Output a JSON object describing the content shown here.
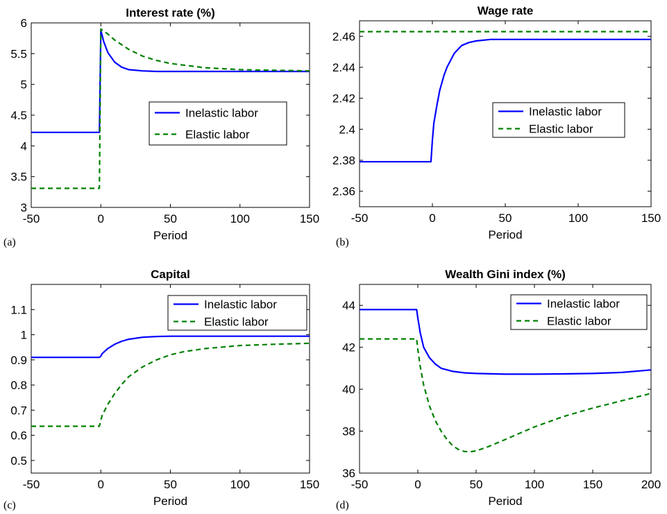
{
  "chart_data": [
    {
      "type": "line",
      "panel_label": "(a)",
      "title": "Interest rate (%)",
      "xlabel": "Period",
      "ylabel": "",
      "xlim": [
        -50,
        150
      ],
      "ylim": [
        3,
        6
      ],
      "xticks": [
        "-50",
        "0",
        "50",
        "100",
        "150"
      ],
      "yticks": [
        "3",
        "3.5",
        "4",
        "4.5",
        "5",
        "5.5",
        "6"
      ],
      "legend_position": "center-right",
      "series": [
        {
          "name": "Inelastic labor",
          "color": "#0000ff",
          "style": "solid",
          "x": [
            -50,
            -1,
            0,
            2,
            5,
            10,
            15,
            20,
            30,
            40,
            50,
            75,
            100,
            150
          ],
          "y": [
            4.22,
            4.22,
            5.88,
            5.7,
            5.52,
            5.36,
            5.28,
            5.24,
            5.22,
            5.21,
            5.21,
            5.21,
            5.21,
            5.21
          ]
        },
        {
          "name": "Elastic labor",
          "color": "#008000",
          "style": "dashed",
          "x": [
            -50,
            -1,
            0,
            5,
            10,
            20,
            30,
            40,
            50,
            75,
            100,
            125,
            150
          ],
          "y": [
            3.31,
            3.31,
            5.9,
            5.82,
            5.72,
            5.57,
            5.46,
            5.39,
            5.34,
            5.27,
            5.24,
            5.23,
            5.22
          ]
        }
      ]
    },
    {
      "type": "line",
      "panel_label": "(b)",
      "title": "Wage rate",
      "xlabel": "Period",
      "ylabel": "",
      "xlim": [
        -50,
        150
      ],
      "ylim": [
        2.35,
        2.47
      ],
      "xticks": [
        "-50",
        "0",
        "50",
        "100",
        "150"
      ],
      "yticks": [
        "2.36",
        "2.38",
        "2.4",
        "2.42",
        "2.44",
        "2.46"
      ],
      "legend_position": "center-right",
      "series": [
        {
          "name": "Inelastic labor",
          "color": "#0000ff",
          "style": "solid",
          "x": [
            -50,
            -1,
            0,
            1,
            3,
            5,
            8,
            10,
            15,
            20,
            25,
            30,
            40,
            50,
            100,
            150
          ],
          "y": [
            2.379,
            2.379,
            2.393,
            2.404,
            2.415,
            2.425,
            2.435,
            2.44,
            2.449,
            2.454,
            2.456,
            2.457,
            2.458,
            2.458,
            2.458,
            2.458
          ]
        },
        {
          "name": "Elastic labor",
          "color": "#008000",
          "style": "dashed",
          "x": [
            -50,
            150
          ],
          "y": [
            2.463,
            2.463
          ]
        }
      ]
    },
    {
      "type": "line",
      "panel_label": "(c)",
      "title": "Capital",
      "xlabel": "Period",
      "ylabel": "",
      "xlim": [
        -50,
        150
      ],
      "ylim": [
        0.45,
        1.2
      ],
      "xticks": [
        "-50",
        "0",
        "50",
        "100",
        "150"
      ],
      "yticks": [
        "0.5",
        "0.6",
        "0.7",
        "0.8",
        "0.9",
        "1",
        "1.1"
      ],
      "legend_position": "top-right",
      "series": [
        {
          "name": "Inelastic labor",
          "color": "#0000ff",
          "style": "solid",
          "x": [
            -50,
            -1,
            0,
            1,
            5,
            10,
            15,
            20,
            30,
            40,
            50,
            75,
            100,
            150
          ],
          "y": [
            0.91,
            0.91,
            0.915,
            0.925,
            0.945,
            0.962,
            0.974,
            0.982,
            0.99,
            0.993,
            0.994,
            0.994,
            0.994,
            0.994
          ]
        },
        {
          "name": "Elastic labor",
          "color": "#008000",
          "style": "dashed",
          "x": [
            -50,
            -1,
            0,
            1,
            5,
            10,
            15,
            20,
            30,
            40,
            50,
            60,
            75,
            100,
            125,
            150
          ],
          "y": [
            0.636,
            0.636,
            0.66,
            0.68,
            0.723,
            0.766,
            0.802,
            0.833,
            0.872,
            0.9,
            0.92,
            0.933,
            0.945,
            0.957,
            0.962,
            0.966
          ]
        }
      ]
    },
    {
      "type": "line",
      "panel_label": "(d)",
      "title": "Wealth Gini index (%)",
      "xlabel": "Period",
      "ylabel": "",
      "xlim": [
        -50,
        200
      ],
      "ylim": [
        36,
        45
      ],
      "xticks": [
        "-50",
        "0",
        "50",
        "100",
        "150",
        "200"
      ],
      "yticks": [
        "36",
        "38",
        "40",
        "42",
        "44"
      ],
      "legend_position": "top-right",
      "series": [
        {
          "name": "Inelastic labor",
          "color": "#0000ff",
          "style": "solid",
          "x": [
            -50,
            -1,
            0,
            2,
            5,
            10,
            15,
            20,
            30,
            40,
            50,
            75,
            100,
            125,
            150,
            175,
            200
          ],
          "y": [
            43.8,
            43.8,
            43.4,
            42.7,
            42.0,
            41.5,
            41.2,
            41.0,
            40.85,
            40.78,
            40.75,
            40.72,
            40.72,
            40.73,
            40.75,
            40.8,
            40.92
          ]
        },
        {
          "name": "Elastic labor",
          "color": "#008000",
          "style": "dashed",
          "x": [
            -50,
            -1,
            0,
            2,
            5,
            10,
            15,
            20,
            25,
            30,
            35,
            40,
            45,
            50,
            60,
            75,
            100,
            125,
            150,
            175,
            200
          ],
          "y": [
            42.4,
            42.4,
            41.9,
            41.1,
            40.2,
            39.2,
            38.5,
            38.0,
            37.6,
            37.3,
            37.12,
            37.03,
            37.02,
            37.06,
            37.25,
            37.6,
            38.2,
            38.7,
            39.1,
            39.45,
            39.8
          ]
        }
      ]
    }
  ]
}
